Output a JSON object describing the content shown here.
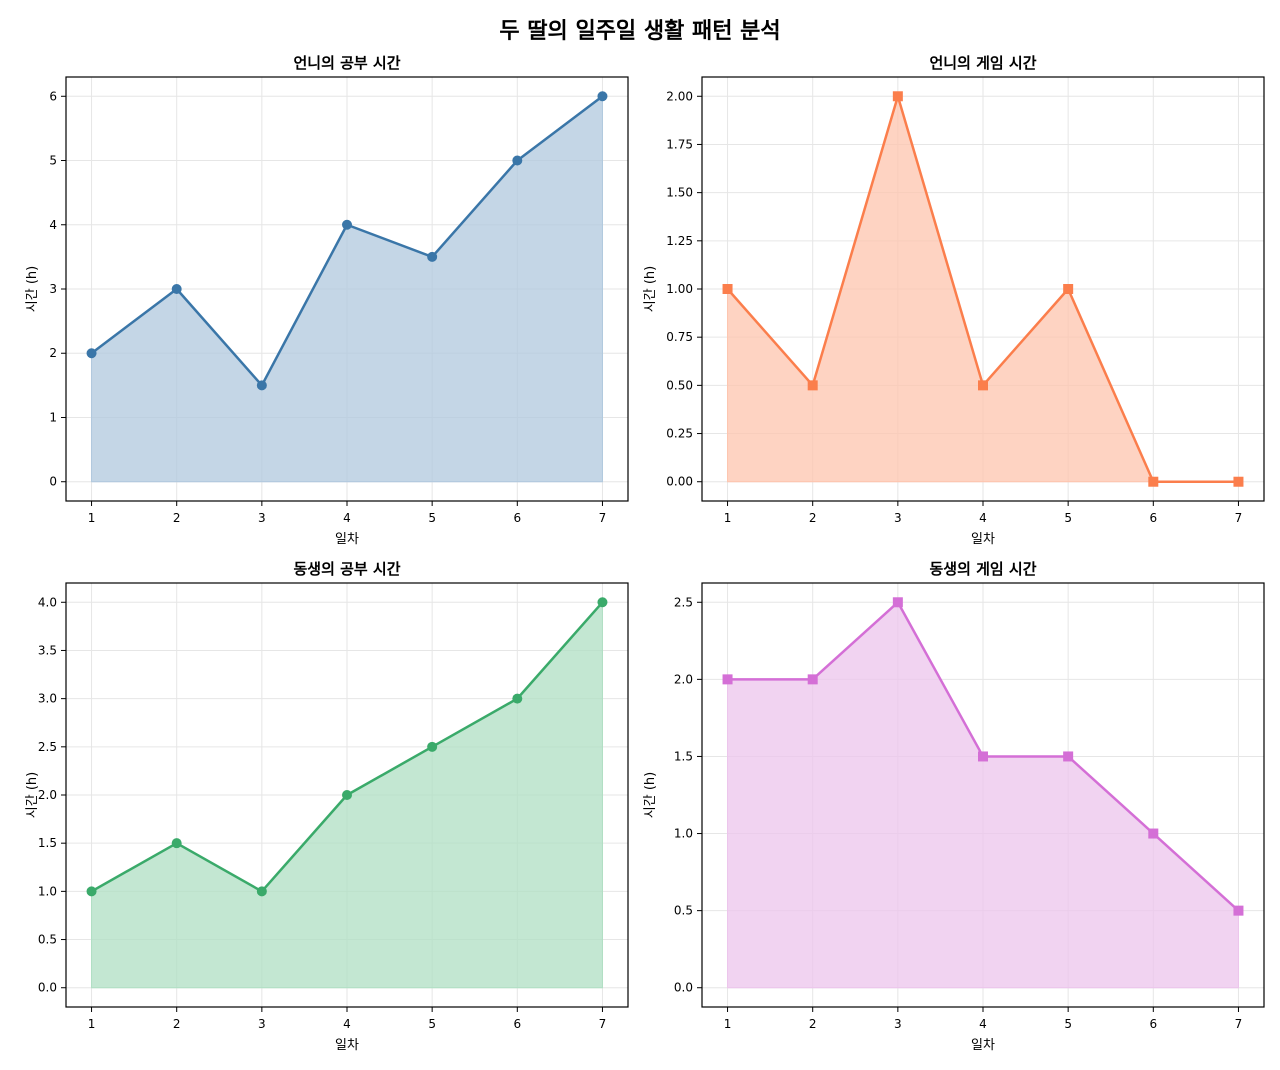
{
  "figure": {
    "title": "두 딸의 일주일 생활 패턴 분석"
  },
  "chart_data": [
    {
      "type": "area",
      "title": "언니의 공부 시간",
      "xlabel": "일차",
      "ylabel": "시간 (h)",
      "x": [
        1,
        2,
        3,
        4,
        5,
        6,
        7
      ],
      "values": [
        2,
        3,
        1.5,
        4,
        3.5,
        5,
        6
      ],
      "xlim": [
        0.7,
        7.3
      ],
      "ylim": [
        -0.3,
        6.3
      ],
      "yticks": [
        0,
        1,
        2,
        3,
        4,
        5,
        6
      ],
      "ytick_labels": [
        "0",
        "1",
        "2",
        "3",
        "4",
        "5",
        "6"
      ],
      "marker": "circle",
      "color": "#3a76a8",
      "fill_color": "#b0c8de",
      "grid": true
    },
    {
      "type": "area",
      "title": "언니의 게임 시간",
      "xlabel": "일차",
      "ylabel": "시간 (h)",
      "x": [
        1,
        2,
        3,
        4,
        5,
        6,
        7
      ],
      "values": [
        1,
        0.5,
        2,
        0.5,
        1,
        0,
        0
      ],
      "xlim": [
        0.7,
        7.3
      ],
      "ylim": [
        -0.1,
        2.1
      ],
      "yticks": [
        0,
        0.25,
        0.5,
        0.75,
        1.0,
        1.25,
        1.5,
        1.75,
        2.0
      ],
      "ytick_labels": [
        "0.00",
        "0.25",
        "0.50",
        "0.75",
        "1.00",
        "1.25",
        "1.50",
        "1.75",
        "2.00"
      ],
      "marker": "square",
      "color": "#fb7e4c",
      "fill_color": "#fec4ae",
      "grid": true
    },
    {
      "type": "area",
      "title": "동생의 공부 시간",
      "xlabel": "일차",
      "ylabel": "시간 (h)",
      "x": [
        1,
        2,
        3,
        4,
        5,
        6,
        7
      ],
      "values": [
        1,
        1.5,
        1,
        2,
        2.5,
        3,
        4
      ],
      "xlim": [
        0.7,
        7.3
      ],
      "ylim": [
        -0.2,
        4.2
      ],
      "yticks": [
        0,
        0.5,
        1.0,
        1.5,
        2.0,
        2.5,
        3.0,
        3.5,
        4.0
      ],
      "ytick_labels": [
        "0.0",
        "0.5",
        "1.0",
        "1.5",
        "2.0",
        "2.5",
        "3.0",
        "3.5",
        "4.0"
      ],
      "marker": "circle",
      "color": "#3aaa6a",
      "fill_color": "#afdfc3",
      "grid": true
    },
    {
      "type": "area",
      "title": "동생의 게임 시간",
      "xlabel": "일차",
      "ylabel": "시간 (h)",
      "x": [
        1,
        2,
        3,
        4,
        5,
        6,
        7
      ],
      "values": [
        2,
        2,
        2.5,
        1.5,
        1.5,
        1,
        0.5
      ],
      "xlim": [
        0.7,
        7.3
      ],
      "ylim": [
        -0.125,
        2.625
      ],
      "yticks": [
        0,
        0.5,
        1.0,
        1.5,
        2.0,
        2.5
      ],
      "ytick_labels": [
        "0.0",
        "0.5",
        "1.0",
        "1.5",
        "2.0",
        "2.5"
      ],
      "marker": "square",
      "color": "#d46fd6",
      "fill_color": "#ecc4ec",
      "grid": true
    }
  ]
}
